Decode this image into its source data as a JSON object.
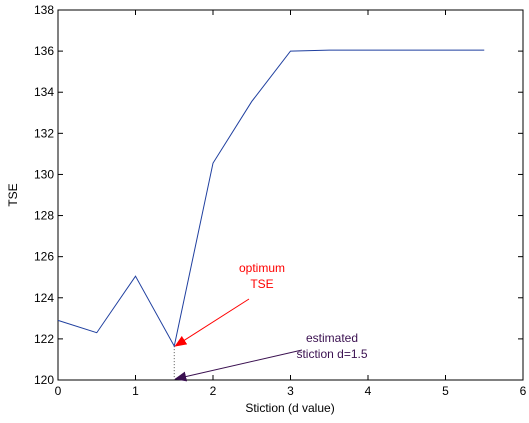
{
  "chart_data": {
    "type": "line",
    "xlabel": "Stiction (d value)",
    "ylabel": "TSE",
    "xlim": [
      0,
      6
    ],
    "ylim": [
      120,
      138
    ],
    "xticks": [
      0,
      1,
      2,
      3,
      4,
      5,
      6
    ],
    "yticks": [
      120,
      122,
      124,
      126,
      128,
      130,
      132,
      134,
      136,
      138
    ],
    "grid": false,
    "series": [
      {
        "color": "#1f3f9f",
        "x": [
          0,
          0.5,
          1.0,
          1.5,
          2.0,
          2.5,
          3.0,
          3.5,
          4.0,
          4.5,
          5.0,
          5.5
        ],
        "y": [
          122.9,
          122.3,
          125.05,
          121.65,
          130.55,
          133.55,
          136.0,
          136.05,
          136.05,
          136.05,
          136.05,
          136.05
        ]
      }
    ],
    "annotations": [
      {
        "lines": [
          "optimum",
          "TSE"
        ],
        "color": "#ff0000",
        "target": [
          1.5,
          121.65
        ]
      },
      {
        "lines": [
          "estimated",
          "stiction d=1.5"
        ],
        "color": "#3a1050",
        "target": [
          1.5,
          120.05
        ]
      }
    ]
  }
}
